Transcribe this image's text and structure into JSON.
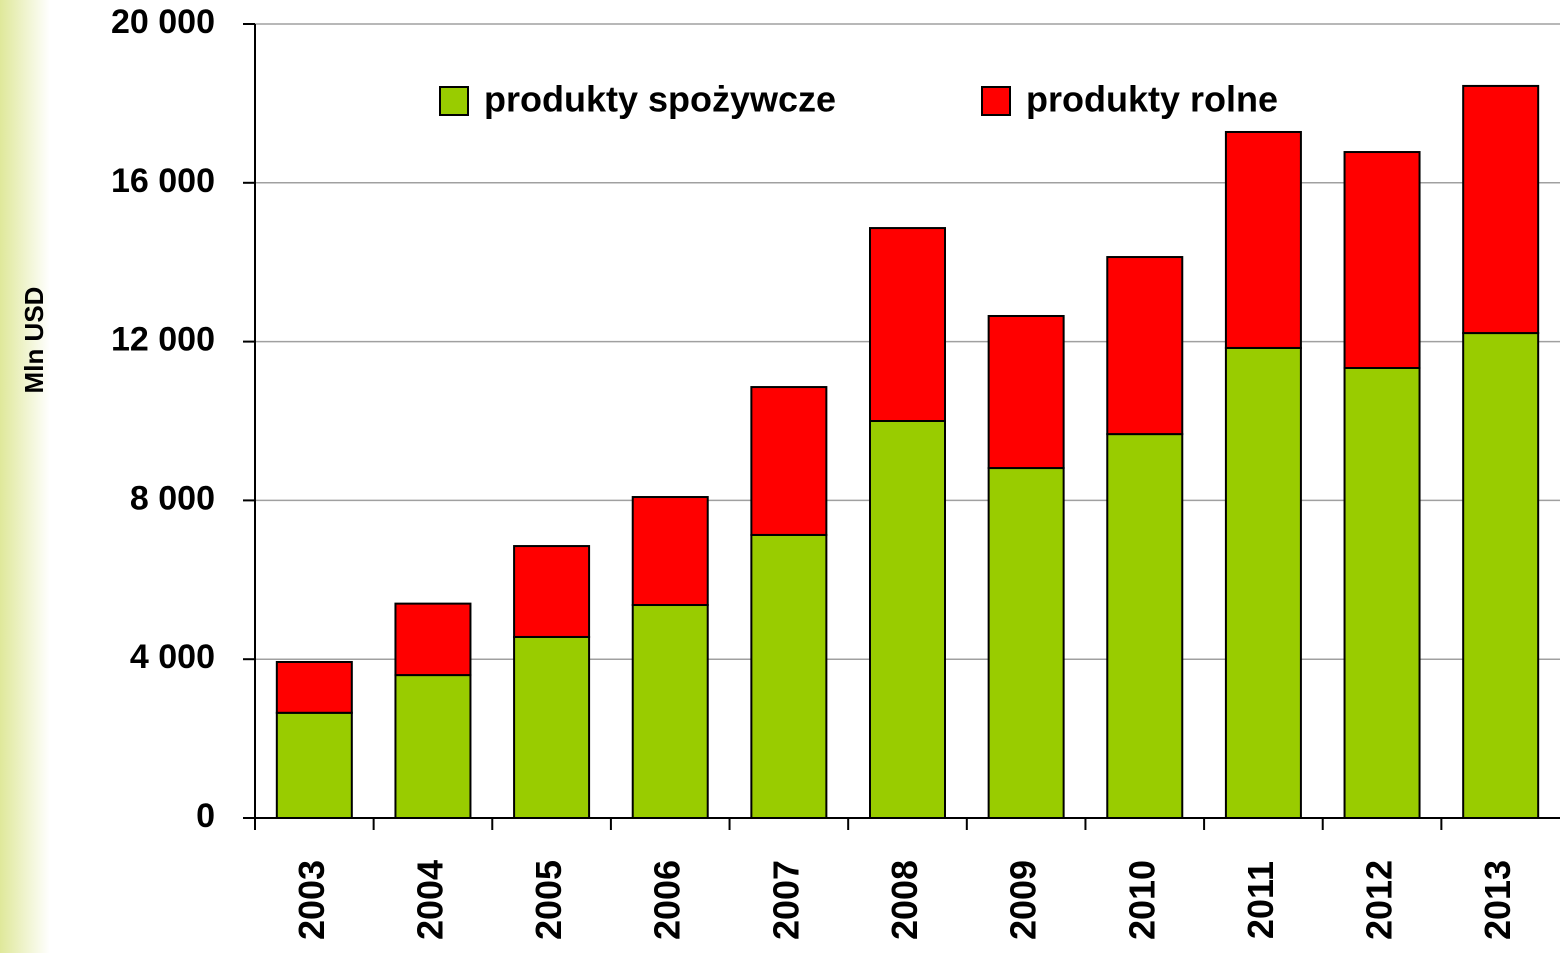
{
  "chart_data": {
    "type": "stacked_bar",
    "y_label": "Mln USD",
    "categories": [
      "2003",
      "2004",
      "2005",
      "2006",
      "2007",
      "2008",
      "2009",
      "2010",
      "2011",
      "2012",
      "2013"
    ],
    "series": [
      {
        "name": "produkty spożywcze",
        "color": "#99cc00",
        "values": [
          2650,
          3600,
          4560,
          5365,
          7130,
          10000,
          8815,
          9670,
          11840,
          11335,
          12215
        ]
      },
      {
        "name": "produkty rolne",
        "color": "#ff0000",
        "values": [
          1280,
          1800,
          2290,
          2720,
          3725,
          4860,
          3830,
          4460,
          5440,
          5440,
          6225
        ]
      }
    ],
    "ylim": [
      0,
      20000
    ],
    "yticks": [
      0,
      {
        "value": 4000,
        "label": "4 000"
      },
      {
        "value": 8000,
        "label": "8 000"
      },
      {
        "value": 12000,
        "label": "12 000"
      },
      {
        "value": 16000,
        "label": "16 000"
      },
      {
        "value": 20000,
        "label": "20 000"
      }
    ],
    "grid": true
  }
}
